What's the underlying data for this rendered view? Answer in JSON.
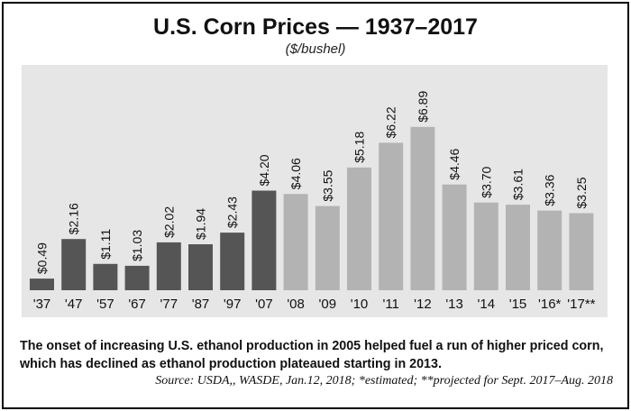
{
  "chart_data": {
    "type": "bar",
    "title": "U.S. Corn Prices — 1937–2017",
    "subtitle": "($/bushel)",
    "categories": [
      "'37",
      "'47",
      "'57",
      "'67",
      "'77",
      "'87",
      "'97",
      "'07",
      "'08",
      "'09",
      "'10",
      "'11",
      "'12",
      "'13",
      "'14",
      "'15",
      "'16*",
      "'17**"
    ],
    "values": [
      0.49,
      2.16,
      1.11,
      1.03,
      2.02,
      1.94,
      2.43,
      4.2,
      4.06,
      3.55,
      5.18,
      6.22,
      6.89,
      4.46,
      3.7,
      3.61,
      3.36,
      3.25
    ],
    "value_labels": [
      "$0.49",
      "$2.16",
      "$1.11",
      "$1.03",
      "$2.02",
      "$1.94",
      "$2.43",
      "$4.20",
      "$4.06",
      "$3.55",
      "$5.18",
      "$6.22",
      "$6.89",
      "$4.46",
      "$3.70",
      "$3.61",
      "$3.36",
      "$3.25"
    ],
    "ylim": [
      0,
      8.2
    ],
    "grid": false,
    "colors": {
      "dark": "#555555",
      "light": "#b3b3b3",
      "background": "#e6e6e6"
    },
    "dark_count": 8
  },
  "caption": "The onset of increasing U.S. ethanol production in 2005 helped fuel a run of higher priced corn, which has declined as ethanol production plateaued starting in 2013.",
  "source": "Source: USDA,, WASDE, Jan.12, 2018; *estimated; **projected for Sept. 2017–Aug. 2018"
}
